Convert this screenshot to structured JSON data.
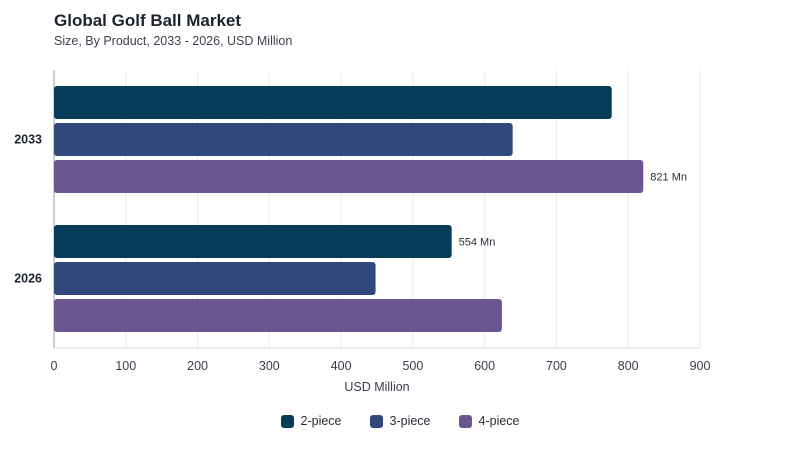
{
  "header": {
    "title": "Global Golf Ball Market",
    "subtitle": "Size, By Product, 2033 - 2026, USD Million"
  },
  "chart_data": {
    "type": "bar",
    "orientation": "horizontal",
    "categories": [
      "2033",
      "2026"
    ],
    "series": [
      {
        "name": "2-piece",
        "color": "#073b5a",
        "values": [
          777,
          554
        ]
      },
      {
        "name": "3-piece",
        "color": "#30497a",
        "values": [
          639,
          448
        ]
      },
      {
        "name": "4-piece",
        "color": "#6b5590",
        "values": [
          821,
          624
        ]
      }
    ],
    "data_labels": [
      {
        "category": "2033",
        "series": "4-piece",
        "text": "821 Mn"
      },
      {
        "category": "2026",
        "series": "2-piece",
        "text": "554 Mn"
      }
    ],
    "xlabel": "USD Million",
    "ylabel": "",
    "xlim": [
      0,
      900
    ],
    "xticks": [
      0,
      100,
      200,
      300,
      400,
      500,
      600,
      700,
      800,
      900
    ],
    "grid": true,
    "legend_position": "bottom-center"
  }
}
